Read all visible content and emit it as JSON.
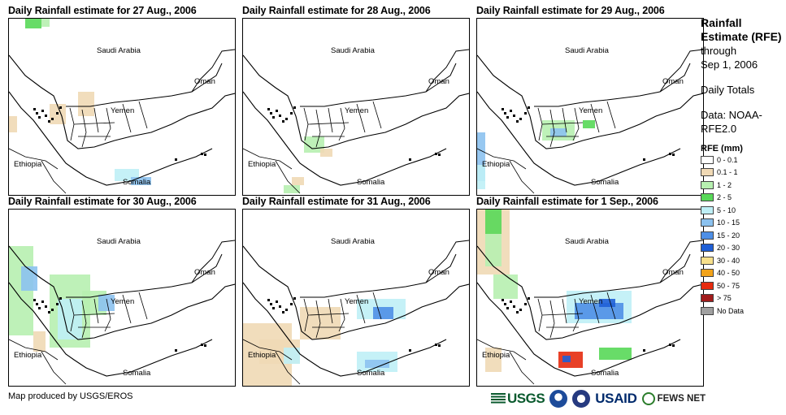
{
  "panels": [
    {
      "title": "Daily Rainfall estimate for 27 Aug., 2006"
    },
    {
      "title": "Daily Rainfall estimate for 28 Aug., 2006"
    },
    {
      "title": "Daily Rainfall estimate for 29 Aug., 2006"
    },
    {
      "title": "Daily Rainfall estimate for 30 Aug., 2006"
    },
    {
      "title": "Daily Rainfall estimate for 31 Aug., 2006"
    },
    {
      "title": "Daily Rainfall estimate for 1 Sep., 2006"
    }
  ],
  "place_labels": {
    "saudi": "Saudi Arabia",
    "oman": "Oman",
    "yemen": "Yemen",
    "ethiopia": "Ethiopia",
    "somalia": "Somalia"
  },
  "legend": {
    "title": "Rainfall Estimate (RFE)",
    "through_label": "through",
    "through_date": "Sep 1, 2006",
    "totals": "Daily Totals",
    "data_source": "Data: NOAA-RFE2.0",
    "scale_title": "RFE (mm)",
    "classes": [
      {
        "label": "0 - 0.1",
        "color": "#ffffff"
      },
      {
        "label": "0.1 - 1",
        "color": "#f0d9b5"
      },
      {
        "label": "1 - 2",
        "color": "#b7f0b0"
      },
      {
        "label": "2 - 5",
        "color": "#58d858"
      },
      {
        "label": "5 - 10",
        "color": "#bfeff6"
      },
      {
        "label": "10 - 15",
        "color": "#8cc2ef"
      },
      {
        "label": "15 - 20",
        "color": "#4e8fe6"
      },
      {
        "label": "20 - 30",
        "color": "#1f5fd6"
      },
      {
        "label": "30 - 40",
        "color": "#f7e08c"
      },
      {
        "label": "40 - 50",
        "color": "#f2a31a"
      },
      {
        "label": "50 - 75",
        "color": "#e62b0f"
      },
      {
        "label": "> 75",
        "color": "#a11c1c"
      },
      {
        "label": "No Data",
        "color": "#a0a0a0"
      }
    ]
  },
  "credit": "Map produced by USGS/EROS",
  "logos": {
    "usgs": "USGS",
    "usaid": "USAID",
    "fews": "FEWS NET"
  }
}
